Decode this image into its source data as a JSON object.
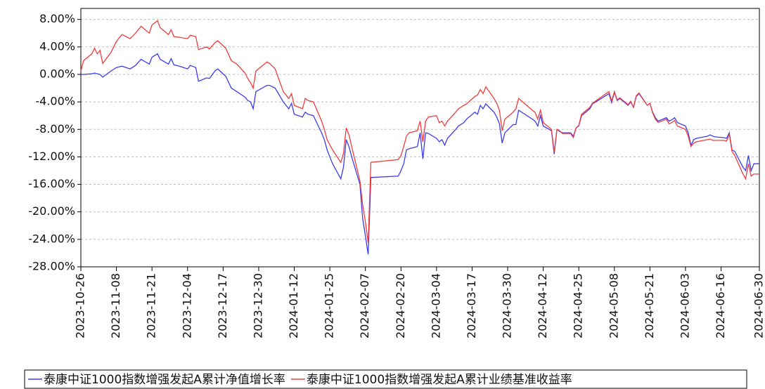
{
  "chart_data": {
    "type": "line",
    "x": [
      "2023-10-26",
      "2023-10-27",
      "2023-10-30",
      "2023-10-31",
      "2023-11-01",
      "2023-11-02",
      "2023-11-03",
      "2023-11-06",
      "2023-11-08",
      "2023-11-10",
      "2023-11-13",
      "2023-11-15",
      "2023-11-17",
      "2023-11-20",
      "2023-11-21",
      "2023-11-23",
      "2023-11-24",
      "2023-11-27",
      "2023-11-28",
      "2023-11-29",
      "2023-12-01",
      "2023-12-04",
      "2023-12-05",
      "2023-12-07",
      "2023-12-08",
      "2023-12-11",
      "2023-12-12",
      "2023-12-14",
      "2023-12-15",
      "2023-12-18",
      "2023-12-20",
      "2023-12-22",
      "2023-12-25",
      "2023-12-26",
      "2023-12-27",
      "2023-12-28",
      "2023-12-29",
      "2024-01-02",
      "2024-01-03",
      "2024-01-05",
      "2024-01-08",
      "2024-01-09",
      "2024-01-10",
      "2024-01-11",
      "2024-01-12",
      "2024-01-15",
      "2024-01-16",
      "2024-01-17",
      "2024-01-19",
      "2024-01-22",
      "2024-01-23",
      "2024-01-24",
      "2024-01-26",
      "2024-01-29",
      "2024-01-30",
      "2024-01-31",
      "2024-02-01",
      "2024-02-02",
      "2024-02-05",
      "2024-02-06",
      "2024-02-07",
      "2024-02-08",
      "2024-02-09",
      "2024-02-19",
      "2024-02-20",
      "2024-02-21",
      "2024-02-22",
      "2024-02-23",
      "2024-02-26",
      "2024-02-27",
      "2024-02-28",
      "2024-02-29",
      "2024-03-01",
      "2024-03-04",
      "2024-03-05",
      "2024-03-06",
      "2024-03-07",
      "2024-03-08",
      "2024-03-11",
      "2024-03-12",
      "2024-03-14",
      "2024-03-15",
      "2024-03-18",
      "2024-03-19",
      "2024-03-20",
      "2024-03-21",
      "2024-03-22",
      "2024-03-25",
      "2024-03-26",
      "2024-03-27",
      "2024-03-28",
      "2024-03-29",
      "2024-04-01",
      "2024-04-02",
      "2024-04-03",
      "2024-04-08",
      "2024-04-09",
      "2024-04-10",
      "2024-04-11",
      "2024-04-12",
      "2024-04-15",
      "2024-04-16",
      "2024-04-17",
      "2024-04-18",
      "2024-04-19",
      "2024-04-22",
      "2024-04-23",
      "2024-04-24",
      "2024-04-25",
      "2024-04-26",
      "2024-04-29",
      "2024-04-30",
      "2024-05-06",
      "2024-05-07",
      "2024-05-08",
      "2024-05-09",
      "2024-05-10",
      "2024-05-13",
      "2024-05-14",
      "2024-05-15",
      "2024-05-16",
      "2024-05-17",
      "2024-05-20",
      "2024-05-21",
      "2024-05-22",
      "2024-05-23",
      "2024-05-24",
      "2024-05-27",
      "2024-05-28",
      "2024-05-29",
      "2024-05-30",
      "2024-05-31",
      "2024-06-03",
      "2024-06-04",
      "2024-06-05",
      "2024-06-06",
      "2024-06-07",
      "2024-06-11",
      "2024-06-12",
      "2024-06-13",
      "2024-06-14",
      "2024-06-17",
      "2024-06-18",
      "2024-06-19",
      "2024-06-20",
      "2024-06-21",
      "2024-06-24",
      "2024-06-25",
      "2024-06-26",
      "2024-06-27",
      "2024-06-28",
      "2024-06-30"
    ],
    "series": [
      {
        "name": "泰康中证1000指数增强发起A累计净值增长率",
        "color": "#3c3cf0",
        "values": [
          0,
          0,
          0.1,
          0.2,
          0.1,
          0,
          -0.4,
          0.5,
          1.0,
          1.2,
          0.8,
          1.3,
          2.2,
          1.5,
          2.5,
          3.0,
          2.2,
          1.5,
          2.3,
          1.4,
          1.2,
          0.8,
          1.3,
          1.0,
          -1.0,
          -0.5,
          -0.6,
          0.5,
          0.8,
          -0.3,
          -2,
          -2.5,
          -3.3,
          -3.8,
          -4,
          -5,
          -2.5,
          -1.6,
          -1.6,
          -2,
          -4,
          -4.5,
          -5,
          -4.2,
          -5.8,
          -6.2,
          -5.5,
          -5.8,
          -6,
          -8.5,
          -9.5,
          -11,
          -13,
          -15.2,
          -13.5,
          -9.5,
          -10.5,
          -12,
          -16,
          -21,
          -23.5,
          -26.2,
          -15,
          -14.8,
          -14,
          -13,
          -11,
          -10.8,
          -10.5,
          -8.5,
          -12.3,
          -8.5,
          -8.6,
          -9.3,
          -9.8,
          -9.5,
          -10.3,
          -9.3,
          -8.0,
          -7.5,
          -7.0,
          -6.5,
          -5.5,
          -5.8,
          -4.5,
          -5,
          -4.3,
          -5.5,
          -6.2,
          -7.2,
          -10,
          -8.5,
          -7.3,
          -7.3,
          -5.2,
          -6.5,
          -6.8,
          -7.5,
          -6.0,
          -7.5,
          -8.2,
          -11.6,
          -8.0,
          -8.3,
          -8.5,
          -8.5,
          -9,
          -7.8,
          -7.5,
          -6,
          -5.0,
          -4.3,
          -2.8,
          -4.1,
          -2.6,
          -3.8,
          -3.5,
          -4.5,
          -4,
          -4.8,
          -3.2,
          -2.8,
          -4.5,
          -4.2,
          -5.5,
          -6.3,
          -6.8,
          -6.3,
          -6.8,
          -6.6,
          -6.3,
          -7,
          -7.5,
          -8.5,
          -10.3,
          -9.5,
          -9.3,
          -9,
          -8.8,
          -9,
          -9.1,
          -9.2,
          -9.3,
          -8.5,
          -11,
          -11.2,
          -13.5,
          -14,
          -11.8,
          -14,
          -13,
          -13
        ]
      },
      {
        "name": "泰康中证1000指数增强发起A累计业绩基准收益率",
        "color": "#f03c3c",
        "values": [
          0.5,
          2,
          3,
          3.8,
          3,
          3.5,
          1.6,
          3.2,
          4.8,
          5.8,
          5.2,
          6,
          7,
          6,
          7.2,
          7.8,
          6.8,
          5.8,
          6.5,
          5.5,
          5.4,
          5.2,
          5.7,
          5.5,
          3.6,
          4,
          3.7,
          4.6,
          4.9,
          3.8,
          2,
          1.5,
          0.2,
          -0.6,
          -1.2,
          -2,
          0.5,
          1.8,
          1.6,
          0.8,
          -2.5,
          -3,
          -3.5,
          -2.8,
          -4.5,
          -5,
          -3.5,
          -3.8,
          -4,
          -6.8,
          -8,
          -9.5,
          -11,
          -12.8,
          -11.5,
          -7.8,
          -8.8,
          -10.5,
          -15.5,
          -19,
          -21.5,
          -24.5,
          -12.8,
          -12.4,
          -11.8,
          -10.5,
          -9,
          -8.5,
          -8.2,
          -6.8,
          -9.8,
          -6.8,
          -6.2,
          -6.0,
          -7.0,
          -6.8,
          -7.5,
          -6.8,
          -5.5,
          -5.0,
          -4.5,
          -4.3,
          -3.2,
          -3.0,
          -2.2,
          -2.8,
          -1.8,
          -3.5,
          -4.2,
          -5.2,
          -8.2,
          -6.5,
          -5.5,
          -5,
          -3.5,
          -5.2,
          -5.5,
          -6.5,
          -5.2,
          -7.0,
          -8.0,
          -11.3,
          -8.0,
          -8.2,
          -8.6,
          -8.6,
          -9.2,
          -7.8,
          -7.4,
          -5.8,
          -4.8,
          -4.2,
          -2.5,
          -3.9,
          -2.5,
          -3.7,
          -3.4,
          -4.4,
          -3.9,
          -4.8,
          -3.1,
          -2.7,
          -4.5,
          -4.2,
          -5.6,
          -6.5,
          -7,
          -6.5,
          -7.2,
          -7,
          -6.7,
          -7.5,
          -8,
          -9,
          -10.5,
          -10,
          -9.8,
          -9.5,
          -9.4,
          -9.6,
          -9.6,
          -9.6,
          -9.7,
          -8.7,
          -11.2,
          -11.8,
          -14.5,
          -15.2,
          -13,
          -14.8,
          -14.5,
          -14.5
        ]
      }
    ],
    "xlim": [
      "2023-10-26",
      "2024-06-30"
    ],
    "xticks": [
      "2023-10-26",
      "2023-11-08",
      "2023-11-21",
      "2023-12-04",
      "2023-12-17",
      "2023-12-30",
      "2024-01-12",
      "2024-01-25",
      "2024-02-07",
      "2024-02-20",
      "2024-03-04",
      "2024-03-17",
      "2024-03-30",
      "2024-04-12",
      "2024-04-25",
      "2024-05-08",
      "2024-05-21",
      "2024-06-03",
      "2024-06-16",
      "2024-06-30"
    ],
    "ylim": [
      -28,
      9.6
    ],
    "yticks": [
      {
        "value": 8,
        "label": "8.00%"
      },
      {
        "value": 4,
        "label": "4.00%"
      },
      {
        "value": 0,
        "label": "0.00%"
      },
      {
        "value": -4,
        "label": "-4.00%"
      },
      {
        "value": -8,
        "label": "-8.00%"
      },
      {
        "value": -12,
        "label": "-12.00%"
      },
      {
        "value": -16,
        "label": "-16.00%"
      },
      {
        "value": -20,
        "label": "-20.00%"
      },
      {
        "value": -24,
        "label": "-24.00%"
      },
      {
        "value": -28,
        "label": "-28.00%"
      }
    ],
    "grid": true
  }
}
